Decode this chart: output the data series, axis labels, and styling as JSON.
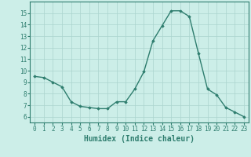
{
  "x": [
    0,
    1,
    2,
    3,
    4,
    5,
    6,
    7,
    8,
    9,
    10,
    11,
    12,
    13,
    14,
    15,
    16,
    17,
    18,
    19,
    20,
    21,
    22,
    23
  ],
  "y": [
    9.5,
    9.4,
    9.0,
    8.6,
    7.3,
    6.9,
    6.8,
    6.7,
    6.7,
    7.3,
    7.3,
    8.4,
    9.9,
    12.6,
    13.9,
    15.2,
    15.2,
    14.7,
    11.5,
    8.4,
    7.9,
    6.8,
    6.4,
    6.0
  ],
  "line_color": "#2e7d6e",
  "marker": "D",
  "markersize": 1.8,
  "linewidth": 1.0,
  "xlabel": "Humidex (Indice chaleur)",
  "ylim": [
    5.5,
    16.0
  ],
  "xlim": [
    -0.5,
    23.5
  ],
  "yticks": [
    6,
    7,
    8,
    9,
    10,
    11,
    12,
    13,
    14,
    15
  ],
  "xticks": [
    0,
    1,
    2,
    3,
    4,
    5,
    6,
    7,
    8,
    9,
    10,
    11,
    12,
    13,
    14,
    15,
    16,
    17,
    18,
    19,
    20,
    21,
    22,
    23
  ],
  "background_color": "#cceee8",
  "grid_color": "#aad4ce",
  "tick_fontsize": 5.5,
  "xlabel_fontsize": 7.0
}
